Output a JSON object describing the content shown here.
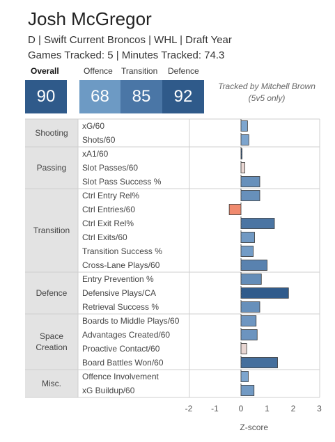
{
  "header": {
    "player_name": "Josh McGregor",
    "subtitle": "D | Swift Current Broncos | WHL | Draft Year",
    "tracking_info": "Games Tracked: 5 | Minutes Tracked: 74.3",
    "credit_line1": "Tracked by Mitchell Brown",
    "credit_line2": "(5v5 only)"
  },
  "scores": {
    "overall": {
      "label": "Overall",
      "value": "90",
      "color": "#2f5a8a"
    },
    "offence": {
      "label": "Offence",
      "value": "68",
      "color": "#6d9ac4"
    },
    "transition": {
      "label": "Transition",
      "value": "85",
      "color": "#4a76a6"
    },
    "defence": {
      "label": "Defence",
      "value": "92",
      "color": "#2f5a8a"
    }
  },
  "chart_data": {
    "type": "bar",
    "orientation": "horizontal",
    "xlabel": "Z-score",
    "xlim": [
      -2,
      3
    ],
    "xticks": [
      -2,
      -1,
      0,
      1,
      2,
      3
    ],
    "grid": false,
    "groups": [
      {
        "name": "Shooting",
        "metrics": [
          {
            "label": "xG/60",
            "value": 0.25
          },
          {
            "label": "Shots/60",
            "value": 0.3
          }
        ]
      },
      {
        "name": "Passing",
        "metrics": [
          {
            "label": "xA1/60",
            "value": 0.02
          },
          {
            "label": "Slot Passes/60",
            "value": 0.15
          },
          {
            "label": "Slot Pass Success %",
            "value": 0.72
          }
        ]
      },
      {
        "name": "Transition",
        "metrics": [
          {
            "label": "Ctrl Entry Rel%",
            "value": 0.72
          },
          {
            "label": "Ctrl Entries/60",
            "value": -0.45
          },
          {
            "label": "Ctrl Exit Rel%",
            "value": 1.28
          },
          {
            "label": "Ctrl Exits/60",
            "value": 0.52
          },
          {
            "label": "Transition Success %",
            "value": 0.47
          },
          {
            "label": "Cross-Lane Plays/60",
            "value": 1.0
          }
        ]
      },
      {
        "name": "Defence",
        "metrics": [
          {
            "label": "Entry Prevention %",
            "value": 0.78
          },
          {
            "label": "Defensive Plays/CA",
            "value": 1.82
          },
          {
            "label": "Retrieval Success %",
            "value": 0.72
          }
        ]
      },
      {
        "name": "Space Creation",
        "metrics": [
          {
            "label": "Boards to Middle Plays/60",
            "value": 0.58
          },
          {
            "label": "Advantages Created/60",
            "value": 0.62
          },
          {
            "label": "Proactive Contact/60",
            "value": 0.22
          },
          {
            "label": "Board Battles Won/60",
            "value": 1.4
          }
        ]
      },
      {
        "name": "Misc.",
        "metrics": [
          {
            "label": "Offence Involvement",
            "value": 0.28
          },
          {
            "label": "xG Buildup/60",
            "value": 0.5
          }
        ]
      }
    ],
    "colors": {
      "negative": "#f08a6e",
      "low_positive": "#e8d6d2",
      "positive_light": "#7ea6cf",
      "positive_dark": "#2f5a8a",
      "category_bg": "#e3e3e3"
    }
  }
}
